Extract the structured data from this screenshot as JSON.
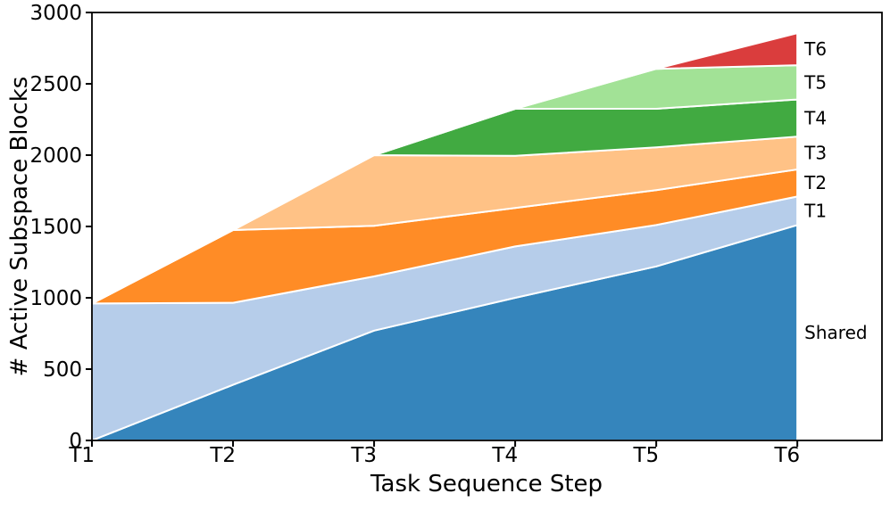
{
  "figure": {
    "background": "#ffffff"
  },
  "chart_data": {
    "type": "area",
    "stacked": true,
    "title": "",
    "xlabel": "Task Sequence Step",
    "ylabel": "# Active Subspace Blocks",
    "categories": [
      "T1",
      "T2",
      "T3",
      "T4",
      "T5",
      "T6"
    ],
    "yticks": [
      0,
      500,
      1000,
      1500,
      2000,
      2500,
      3000
    ],
    "ylim": [
      0,
      3000
    ],
    "xlim": [
      0,
      5.6
    ],
    "grid": false,
    "legend_position": "right-annotations",
    "edge_color": "#ffffff",
    "right_labels_top_to_bottom": [
      "T6",
      "T5",
      "T4",
      "T3",
      "T2",
      "T1",
      "Shared"
    ],
    "series": [
      {
        "name": "Shared",
        "color": "#3585bc",
        "values": [
          0,
          390,
          770,
          1000,
          1220,
          1510
        ]
      },
      {
        "name": "T1",
        "color": "#b6cdea",
        "values": [
          960,
          575,
          380,
          360,
          290,
          200
        ]
      },
      {
        "name": "T2",
        "color": "#ff8c26",
        "values": [
          0,
          510,
          355,
          270,
          245,
          190
        ]
      },
      {
        "name": "T3",
        "color": "#ffc286",
        "values": [
          0,
          0,
          495,
          365,
          300,
          230
        ]
      },
      {
        "name": "T4",
        "color": "#41aa41",
        "values": [
          0,
          0,
          0,
          330,
          270,
          260
        ]
      },
      {
        "name": "T5",
        "color": "#a2e296",
        "values": [
          0,
          0,
          0,
          0,
          280,
          240
        ]
      },
      {
        "name": "T6",
        "color": "#da3d3d",
        "values": [
          0,
          0,
          0,
          0,
          0,
          225
        ]
      }
    ],
    "stack_totals": [
      960,
      1475,
      2000,
      2325,
      2605,
      2855
    ]
  }
}
